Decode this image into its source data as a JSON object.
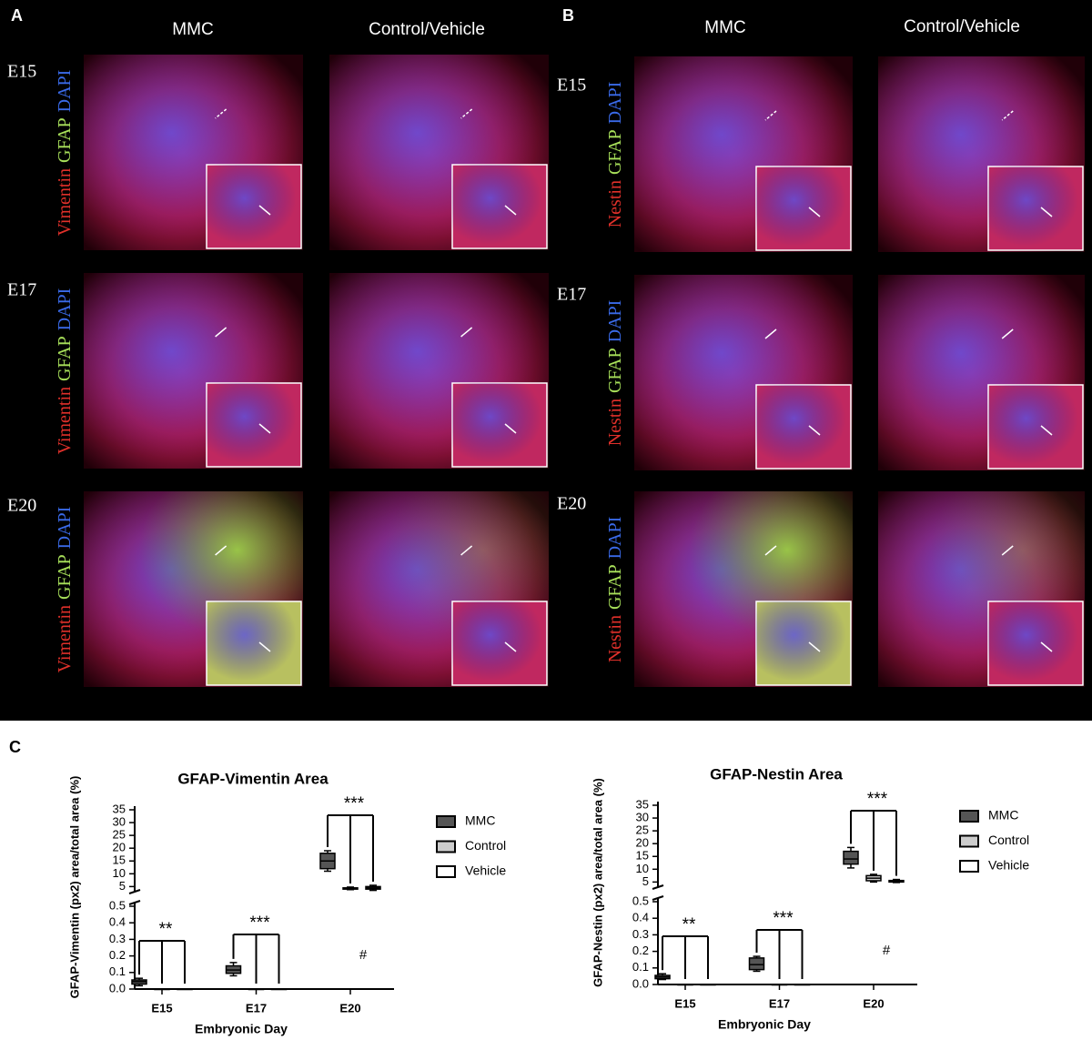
{
  "panels": [
    {
      "letter": "A",
      "columns": [
        "MMC",
        "Control/Vehicle"
      ],
      "rows": [
        "E15",
        "E17",
        "E20"
      ],
      "stain": [
        "Vimentin",
        "GFAP",
        "DAPI"
      ]
    },
    {
      "letter": "B",
      "columns": [
        "MMC",
        "Control/Vehicle"
      ],
      "rows": [
        "E15",
        "E17",
        "E20"
      ],
      "stain": [
        "Nestin",
        "GFAP",
        "DAPI"
      ]
    }
  ],
  "panel_c_letter": "C",
  "chart_data": [
    {
      "type": "box",
      "title": "GFAP-Vimentin Area",
      "x_label": "Embryonic Day",
      "y_label": "GFAP-Vimentin (px2) area/total area (%)",
      "categories": [
        "E15",
        "E17",
        "E20"
      ],
      "series": [
        {
          "name": "MMC",
          "color": "#555555",
          "values": [
            {
              "min": 0.02,
              "q1": 0.03,
              "median": 0.045,
              "q3": 0.055,
              "max": 0.065
            },
            {
              "min": 0.08,
              "q1": 0.095,
              "median": 0.115,
              "q3": 0.14,
              "max": 0.16
            },
            {
              "min": 11,
              "q1": 12,
              "median": 15,
              "q3": 18,
              "max": 19
            }
          ]
        },
        {
          "name": "Control",
          "color": "#cccccc",
          "values": [
            {
              "min": 0,
              "q1": 0,
              "median": 0,
              "q3": 0,
              "max": 0
            },
            {
              "min": 0,
              "q1": 0,
              "median": 0,
              "q3": 0,
              "max": 0
            },
            {
              "min": 3.8,
              "q1": 4,
              "median": 4.3,
              "q3": 4.5,
              "max": 4.8
            }
          ]
        },
        {
          "name": "Vehicle",
          "color": "#ffffff",
          "values": [
            {
              "min": 0,
              "q1": 0,
              "median": 0,
              "q3": 0,
              "max": 0
            },
            {
              "min": 0,
              "q1": 0,
              "median": 0,
              "q3": 0,
              "max": 0
            },
            {
              "min": 3.5,
              "q1": 4,
              "median": 4.5,
              "q3": 5,
              "max": 5.5
            }
          ]
        }
      ],
      "ylim": [
        0,
        0.5
      ],
      "yticks": [
        {
          "value": 0,
          "label": "0.0"
        },
        0.1,
        0.2,
        0.3,
        0.4,
        0.5
      ],
      "ylim_upper": [
        3,
        35
      ],
      "yticks_upper": [
        5,
        10,
        15,
        20,
        25,
        30,
        35
      ],
      "annotations": [
        "**",
        "***",
        "***",
        "#"
      ]
    },
    {
      "type": "box",
      "title": "GFAP-Nestin Area",
      "x_label": "Embryonic Day",
      "y_label": "GFAP-Nestin (px2) area/total area (%)",
      "categories": [
        "E15",
        "E17",
        "E20"
      ],
      "series": [
        {
          "name": "MMC",
          "color": "#555555",
          "values": [
            {
              "min": 0.03,
              "q1": 0.035,
              "median": 0.045,
              "q3": 0.055,
              "max": 0.065
            },
            {
              "min": 0.08,
              "q1": 0.09,
              "median": 0.12,
              "q3": 0.16,
              "max": 0.17
            },
            {
              "min": 10.5,
              "q1": 12,
              "median": 14,
              "q3": 17,
              "max": 18.5
            }
          ]
        },
        {
          "name": "Control",
          "color": "#cccccc",
          "values": [
            {
              "min": 0,
              "q1": 0,
              "median": 0,
              "q3": 0,
              "max": 0
            },
            {
              "min": 0,
              "q1": 0,
              "median": 0,
              "q3": 0,
              "max": 0
            },
            {
              "min": 5,
              "q1": 5.5,
              "median": 6.5,
              "q3": 7.5,
              "max": 8
            }
          ]
        },
        {
          "name": "Vehicle",
          "color": "#ffffff",
          "values": [
            {
              "min": 0,
              "q1": 0,
              "median": 0,
              "q3": 0,
              "max": 0
            },
            {
              "min": 0,
              "q1": 0,
              "median": 0,
              "q3": 0,
              "max": 0
            },
            {
              "min": 4.8,
              "q1": 5,
              "median": 5.3,
              "q3": 5.6,
              "max": 6
            }
          ]
        }
      ],
      "ylim": [
        0,
        0.5
      ],
      "yticks": [
        {
          "value": 0,
          "label": "0.0"
        },
        0.1,
        0.2,
        0.3,
        0.4,
        0.5
      ],
      "ylim_upper": [
        3,
        35
      ],
      "yticks_upper": [
        5,
        10,
        15,
        20,
        25,
        30,
        35
      ],
      "annotations": [
        "**",
        "***",
        "***",
        "#"
      ]
    }
  ]
}
